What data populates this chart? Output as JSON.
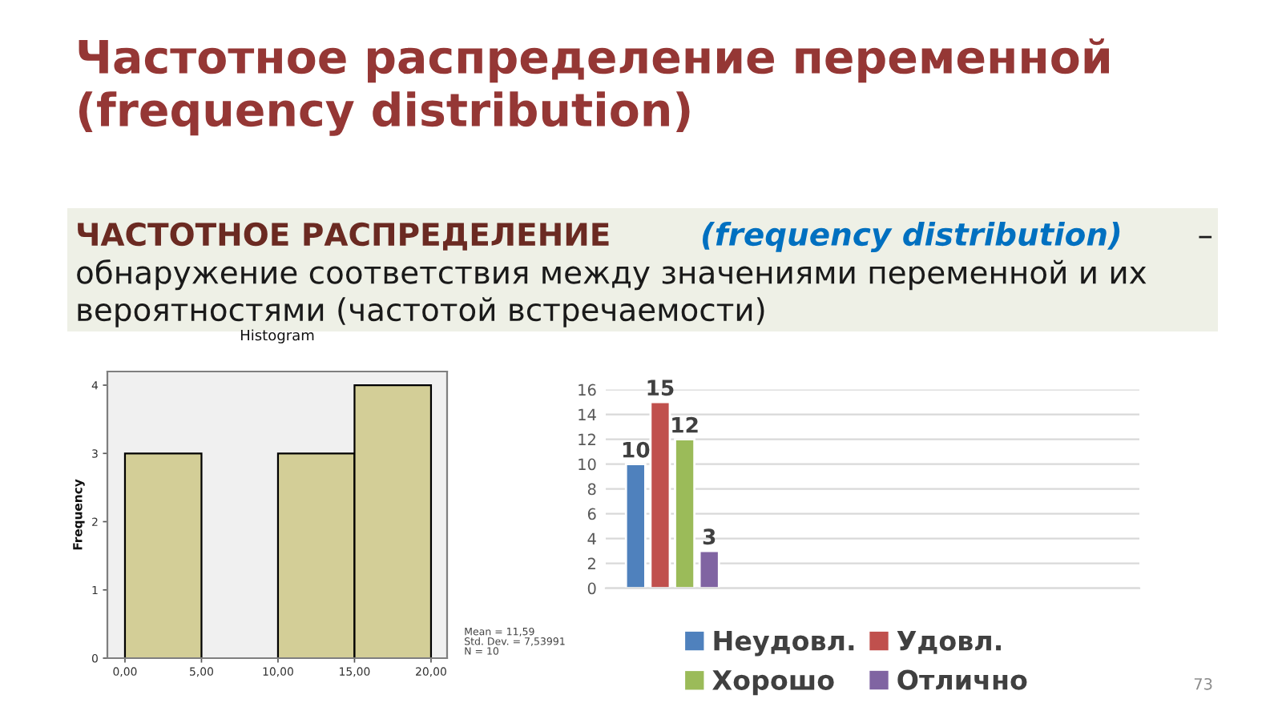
{
  "chart_data": [
    {
      "type": "other",
      "title": "Частотное распределение переменной (frequency distribution)",
      "annotations": [
        "ЧАСТОТНОЕ РАСПРЕДЕЛЕНИЕ",
        "(frequency distribution)",
        "–",
        "обнаружение соответствия между значениями переменной и их вероятностями (частотой встречаемости)",
        "73"
      ]
    },
    {
      "type": "histogram",
      "title": "Histogram",
      "ylabel": "Frequency",
      "bins": [
        0,
        5,
        10,
        15,
        20
      ],
      "values": [
        3,
        0,
        3,
        4
      ],
      "color": "#d3ce97",
      "xlim": [
        -1.15,
        21.05
      ],
      "xticks": [
        {
          "value": 0,
          "label": "0,00"
        },
        {
          "value": 5,
          "label": "5,00"
        },
        {
          "value": 10,
          "label": "10,00"
        },
        {
          "value": 15,
          "label": "15,00"
        },
        {
          "value": 20,
          "label": "20,00"
        }
      ],
      "ylim": [
        0,
        4.2
      ],
      "yticks": [
        0,
        1,
        2,
        3,
        4
      ],
      "annotations": [
        "Mean = 11,59",
        "Std. Dev. = 7,53991",
        "N = 10"
      ]
    },
    {
      "type": "bar",
      "categories": [
        null,
        null,
        null,
        null
      ],
      "series": [
        {
          "name": "Неудовл.",
          "color": "#4f81bd",
          "values": [
            10,
            null,
            null,
            null
          ]
        },
        {
          "name": "Удовл.",
          "color": "#c0504d",
          "values": [
            15,
            null,
            null,
            null
          ]
        },
        {
          "name": "Хорошо",
          "color": "#9bbb59",
          "values": [
            12,
            null,
            null,
            null
          ]
        },
        {
          "name": "Отлично",
          "color": "#8064a2",
          "values": [
            3,
            null,
            null,
            null
          ]
        }
      ],
      "ylim": [
        0,
        16
      ],
      "yticks": [
        0,
        2,
        4,
        6,
        8,
        10,
        12,
        14,
        16
      ],
      "grid": "y",
      "legend": "bottom",
      "data_labels": true
    }
  ]
}
